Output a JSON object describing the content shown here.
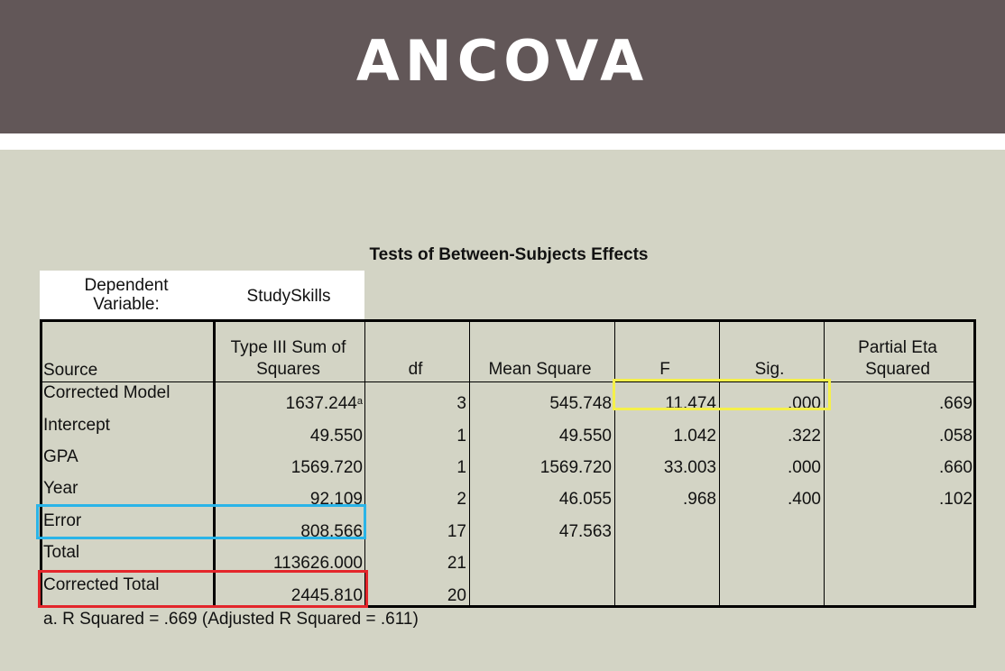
{
  "header": {
    "title": "ANCOVA"
  },
  "table": {
    "title": "Tests of Between-Subjects Effects",
    "dependent_variable_label": "Dependent Variable:",
    "dependent_variable_value": "StudySkills",
    "columns": [
      "Source",
      "Type III Sum of Squares",
      "df",
      "Mean Square",
      "F",
      "Sig.",
      "Partial Eta Squared"
    ],
    "rows": [
      {
        "source": "Corrected Model",
        "ss": "1637.244",
        "ss_sup": "a",
        "df": "3",
        "ms": "545.748",
        "f": "11.474",
        "sig": ".000",
        "eta": ".669"
      },
      {
        "source": "Intercept",
        "ss": "49.550",
        "ss_sup": "",
        "df": "1",
        "ms": "49.550",
        "f": "1.042",
        "sig": ".322",
        "eta": ".058"
      },
      {
        "source": "GPA",
        "ss": "1569.720",
        "ss_sup": "",
        "df": "1",
        "ms": "1569.720",
        "f": "33.003",
        "sig": ".000",
        "eta": ".660"
      },
      {
        "source": "Year",
        "ss": "92.109",
        "ss_sup": "",
        "df": "2",
        "ms": "46.055",
        "f": ".968",
        "sig": ".400",
        "eta": ".102"
      },
      {
        "source": "Error",
        "ss": "808.566",
        "ss_sup": "",
        "df": "17",
        "ms": "47.563",
        "f": "",
        "sig": "",
        "eta": ""
      },
      {
        "source": "Total",
        "ss": "113626.000",
        "ss_sup": "",
        "df": "21",
        "ms": "",
        "f": "",
        "sig": "",
        "eta": ""
      },
      {
        "source": "Corrected Total",
        "ss": "2445.810",
        "ss_sup": "",
        "df": "20",
        "ms": "",
        "f": "",
        "sig": "",
        "eta": ""
      }
    ],
    "footnote": "a. R Squared = .669 (Adjusted R Squared = .611)"
  },
  "highlights": {
    "yellow": "#f5f04a",
    "blue": "#2ab4e8",
    "red": "#e3262b"
  }
}
